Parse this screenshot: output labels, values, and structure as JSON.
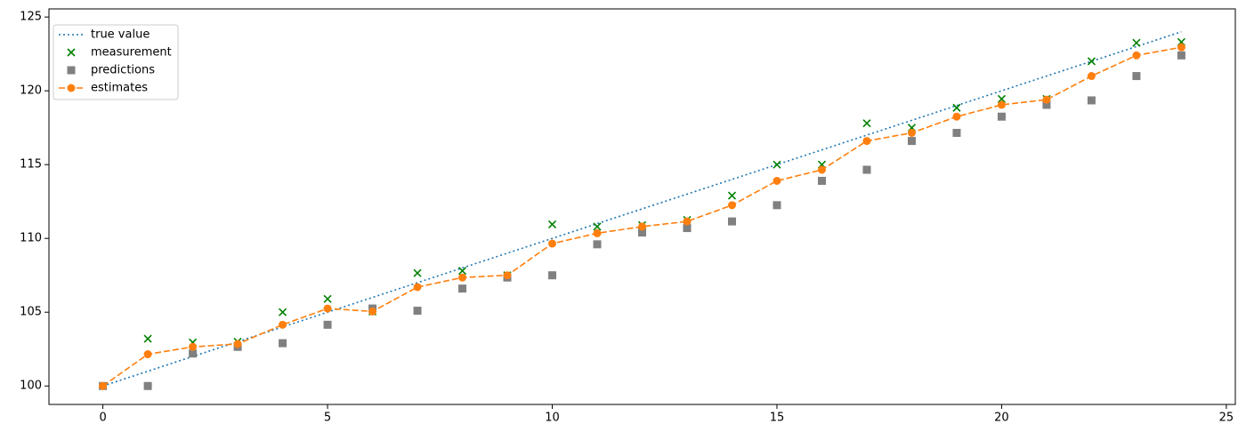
{
  "chart_data": {
    "type": "line",
    "xlim": [
      -1.2,
      25.2
    ],
    "xticks": [
      0,
      5,
      10,
      15,
      20,
      25
    ],
    "ylim": [
      98.75,
      125.55
    ],
    "yticks": [
      100,
      105,
      110,
      115,
      120,
      125
    ],
    "grid": false,
    "legend": "upper left",
    "series": [
      {
        "name": "true value",
        "color": "#1f77b4",
        "linestyle": "dotted",
        "marker": "none",
        "x": [
          0,
          1,
          2,
          3,
          4,
          5,
          6,
          7,
          8,
          9,
          10,
          11,
          12,
          13,
          14,
          15,
          16,
          17,
          18,
          19,
          20,
          21,
          22,
          23,
          24
        ],
        "values": [
          100,
          101,
          102,
          103,
          104,
          105,
          106,
          107,
          108,
          109,
          110,
          111,
          112,
          113,
          114,
          115,
          116,
          117,
          118,
          119,
          120,
          121,
          122,
          123,
          124
        ]
      },
      {
        "name": "measurement",
        "color": "#008000",
        "linestyle": "none",
        "marker": "x",
        "x": [
          1,
          2,
          3,
          4,
          5,
          6,
          7,
          8,
          9,
          10,
          11,
          12,
          13,
          14,
          15,
          16,
          17,
          18,
          19,
          20,
          21,
          22,
          23,
          24
        ],
        "values": [
          103.2,
          102.95,
          103.0,
          105.0,
          105.9,
          105.05,
          107.65,
          107.8,
          107.5,
          110.95,
          110.8,
          110.9,
          111.25,
          112.9,
          115.0,
          115.0,
          117.8,
          117.5,
          118.85,
          119.45,
          119.45,
          122.0,
          123.25,
          123.3
        ]
      },
      {
        "name": "predictions",
        "color": "#808080",
        "linestyle": "none",
        "marker": "square",
        "x": [
          0,
          1,
          2,
          3,
          4,
          5,
          6,
          7,
          8,
          9,
          10,
          11,
          12,
          13,
          14,
          15,
          16,
          17,
          18,
          19,
          20,
          21,
          22,
          23,
          24
        ],
        "values": [
          100,
          100,
          102.2,
          102.65,
          102.9,
          104.15,
          105.25,
          105.1,
          106.6,
          107.35,
          107.5,
          109.6,
          110.4,
          110.7,
          111.15,
          112.25,
          113.9,
          114.65,
          116.6,
          117.15,
          118.25,
          119.05,
          119.35,
          121.0,
          122.4
        ]
      },
      {
        "name": "estimates",
        "color": "#ff7f0e",
        "linestyle": "dashed",
        "marker": "circle",
        "x": [
          0,
          1,
          2,
          3,
          4,
          5,
          6,
          7,
          8,
          9,
          10,
          11,
          12,
          13,
          14,
          15,
          16,
          17,
          18,
          19,
          20,
          21,
          22,
          23,
          24
        ],
        "values": [
          100,
          102.15,
          102.65,
          102.85,
          104.15,
          105.25,
          105.05,
          106.7,
          107.35,
          107.5,
          109.65,
          110.35,
          110.8,
          111.15,
          112.25,
          113.9,
          114.65,
          116.6,
          117.15,
          118.25,
          119.05,
          119.4,
          121.0,
          122.4,
          122.95
        ]
      }
    ]
  }
}
